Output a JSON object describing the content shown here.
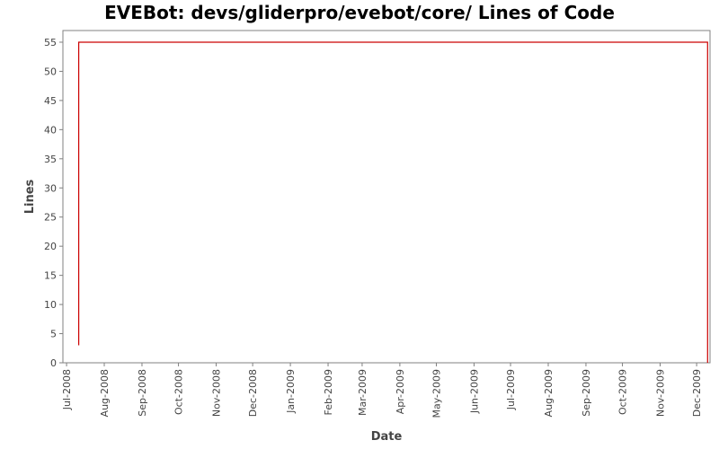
{
  "chart_data": {
    "type": "line",
    "title": "EVEBot: devs/gliderpro/evebot/core/ Lines of Code",
    "xlabel": "Date",
    "ylabel": "Lines",
    "ylim": [
      0,
      57
    ],
    "xlim": [
      "2008-06-28",
      "2009-12-12"
    ],
    "yticks": [
      0,
      5,
      10,
      15,
      20,
      25,
      30,
      35,
      40,
      45,
      50,
      55
    ],
    "xticks": [
      {
        "date": "2008-07-01",
        "label": "Jul-2008"
      },
      {
        "date": "2008-08-01",
        "label": "Aug-2008"
      },
      {
        "date": "2008-09-01",
        "label": "Sep-2008"
      },
      {
        "date": "2008-10-01",
        "label": "Oct-2008"
      },
      {
        "date": "2008-11-01",
        "label": "Nov-2008"
      },
      {
        "date": "2008-12-01",
        "label": "Dec-2008"
      },
      {
        "date": "2009-01-01",
        "label": "Jan-2009"
      },
      {
        "date": "2009-02-01",
        "label": "Feb-2009"
      },
      {
        "date": "2009-03-01",
        "label": "Mar-2009"
      },
      {
        "date": "2009-04-01",
        "label": "Apr-2009"
      },
      {
        "date": "2009-05-01",
        "label": "May-2009"
      },
      {
        "date": "2009-06-01",
        "label": "Jun-2009"
      },
      {
        "date": "2009-07-01",
        "label": "Jul-2009"
      },
      {
        "date": "2009-08-01",
        "label": "Aug-2009"
      },
      {
        "date": "2009-09-01",
        "label": "Sep-2009"
      },
      {
        "date": "2009-10-01",
        "label": "Oct-2009"
      },
      {
        "date": "2009-11-01",
        "label": "Nov-2009"
      },
      {
        "date": "2009-12-01",
        "label": "Dec-2009"
      }
    ],
    "grid": false,
    "step": true,
    "series": [
      {
        "color": "#cc0000",
        "points": [
          {
            "x": "2008-07-11",
            "y": 3
          },
          {
            "x": "2008-07-11",
            "y": 55
          },
          {
            "x": "2009-12-10",
            "y": 55
          },
          {
            "x": "2009-12-10",
            "y": 0
          }
        ]
      }
    ]
  }
}
